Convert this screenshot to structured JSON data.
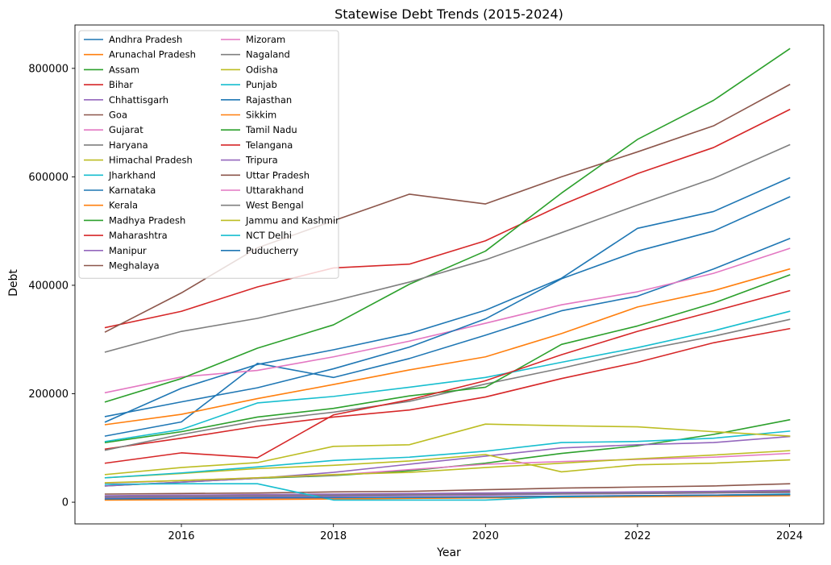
{
  "chart_data": {
    "type": "line",
    "title": "Statewise Debt Trends (2015-2024)",
    "xlabel": "Year",
    "ylabel": "Debt",
    "x": [
      2015,
      2016,
      2017,
      2018,
      2019,
      2020,
      2021,
      2022,
      2023,
      2024
    ],
    "xlim": [
      2014.6,
      2024.45
    ],
    "ylim": [
      -40000,
      880000
    ],
    "xticks": [
      2016,
      2018,
      2020,
      2022,
      2024
    ],
    "yticks": [
      0,
      200000,
      400000,
      600000,
      800000
    ],
    "grid": false,
    "legend_position": "top-left",
    "legend_columns": 2,
    "series": [
      {
        "name": "Andhra Pradesh",
        "color": "#1f77b4",
        "values": [
          122000,
          148000,
          256000,
          230000,
          265000,
          308000,
          353000,
          380000,
          430000,
          486000
        ]
      },
      {
        "name": "Arunachal Pradesh",
        "color": "#ff7f0e",
        "values": [
          5000,
          6000,
          6500,
          7000,
          7500,
          8000,
          10000,
          12000,
          13000,
          14000
        ]
      },
      {
        "name": "Assam",
        "color": "#2ca02c",
        "values": [
          30000,
          37000,
          44000,
          49000,
          58000,
          72000,
          90000,
          104000,
          125000,
          152000
        ]
      },
      {
        "name": "Bihar",
        "color": "#d62728",
        "values": [
          98000,
          118000,
          140000,
          157000,
          170000,
          194000,
          228000,
          258000,
          294000,
          320000
        ]
      },
      {
        "name": "Chhattisgarh",
        "color": "#9467bd",
        "values": [
          30000,
          37000,
          44000,
          55000,
          70000,
          85000,
          100000,
          106000,
          110000,
          121000
        ]
      },
      {
        "name": "Goa",
        "color": "#8c564b",
        "values": [
          15000,
          16000,
          17000,
          19000,
          20000,
          23000,
          26000,
          28000,
          30000,
          34000
        ]
      },
      {
        "name": "Gujarat",
        "color": "#e377c2",
        "values": [
          202000,
          231000,
          243000,
          268000,
          297000,
          330000,
          364000,
          388000,
          422000,
          468000
        ]
      },
      {
        "name": "Haryana",
        "color": "#7f7f7f",
        "values": [
          96000,
          125000,
          150000,
          166000,
          186000,
          218000,
          247000,
          279000,
          306000,
          337000
        ]
      },
      {
        "name": "Himachal Pradesh",
        "color": "#bcbd22",
        "values": [
          45000,
          53000,
          62000,
          68000,
          76000,
          88000,
          56000,
          69000,
          72000,
          78000
        ]
      },
      {
        "name": "Jharkhand",
        "color": "#17becf",
        "values": [
          45000,
          54000,
          65000,
          77000,
          83000,
          94000,
          110000,
          112000,
          118000,
          131000
        ]
      },
      {
        "name": "Karnataka",
        "color": "#1f77b4",
        "values": [
          158000,
          185000,
          211000,
          246000,
          286000,
          338000,
          412000,
          463000,
          500000,
          563000
        ]
      },
      {
        "name": "Kerala",
        "color": "#ff7f0e",
        "values": [
          143000,
          162000,
          191000,
          217000,
          244000,
          268000,
          311000,
          360000,
          390000,
          430000
        ]
      },
      {
        "name": "Madhya Pradesh",
        "color": "#2ca02c",
        "values": [
          110000,
          130000,
          157000,
          173000,
          196000,
          212000,
          291000,
          325000,
          367000,
          419000
        ]
      },
      {
        "name": "Maharashtra",
        "color": "#d62728",
        "values": [
          322000,
          352000,
          397000,
          432000,
          439000,
          482000,
          548000,
          606000,
          654000,
          724000
        ]
      },
      {
        "name": "Manipur",
        "color": "#9467bd",
        "values": [
          8000,
          9000,
          10000,
          11000,
          12000,
          13000,
          15000,
          16000,
          17000,
          18000
        ]
      },
      {
        "name": "Meghalaya",
        "color": "#8c564b",
        "values": [
          10000,
          11000,
          12000,
          13000,
          14000,
          15000,
          16000,
          17000,
          18000,
          19000
        ]
      },
      {
        "name": "Mizoram",
        "color": "#e377c2",
        "values": [
          6000,
          6500,
          7000,
          8000,
          9000,
          10000,
          11000,
          12000,
          13000,
          14000
        ]
      },
      {
        "name": "Nagaland",
        "color": "#7f7f7f",
        "values": [
          10000,
          11000,
          12000,
          13000,
          14000,
          15000,
          16000,
          17000,
          18000,
          20000
        ]
      },
      {
        "name": "Odisha",
        "color": "#bcbd22",
        "values": [
          51000,
          64000,
          73000,
          103000,
          106000,
          144000,
          141000,
          139000,
          130000,
          122000
        ]
      },
      {
        "name": "Punjab",
        "color": "#17becf",
        "values": [
          112000,
          134000,
          183000,
          195000,
          212000,
          230000,
          258000,
          285000,
          316000,
          352000
        ]
      },
      {
        "name": "Rajasthan",
        "color": "#1f77b4",
        "values": [
          148000,
          210000,
          254000,
          281000,
          311000,
          354000,
          413000,
          505000,
          536000,
          598000
        ]
      },
      {
        "name": "Sikkim",
        "color": "#ff7f0e",
        "values": [
          4000,
          4500,
          5000,
          6000,
          7000,
          8000,
          9000,
          10000,
          11000,
          12000
        ]
      },
      {
        "name": "Tamil Nadu",
        "color": "#2ca02c",
        "values": [
          185000,
          228000,
          284000,
          327000,
          402000,
          463000,
          570000,
          669000,
          741000,
          836000
        ]
      },
      {
        "name": "Telangana",
        "color": "#d62728",
        "values": [
          72000,
          91000,
          82000,
          161000,
          189000,
          224000,
          272000,
          315000,
          352000,
          390000
        ]
      },
      {
        "name": "Tripura",
        "color": "#9467bd",
        "values": [
          12000,
          13000,
          14000,
          15000,
          16000,
          17000,
          18000,
          19000,
          20000,
          22000
        ]
      },
      {
        "name": "Uttar Pradesh",
        "color": "#8c564b",
        "values": [
          314000,
          386000,
          469000,
          519000,
          568000,
          550000,
          600000,
          646000,
          694000,
          770000
        ]
      },
      {
        "name": "Uttarakhand",
        "color": "#e377c2",
        "values": [
          35000,
          40000,
          45000,
          50000,
          60000,
          70000,
          75000,
          79000,
          83000,
          90000
        ]
      },
      {
        "name": "West Bengal",
        "color": "#7f7f7f",
        "values": [
          277000,
          315000,
          339000,
          371000,
          406000,
          447000,
          497000,
          548000,
          597000,
          659000
        ]
      },
      {
        "name": "Jammu and Kashmir",
        "color": "#bcbd22",
        "values": [
          36000,
          40000,
          45000,
          51000,
          55000,
          64000,
          72000,
          80000,
          87000,
          95000
        ]
      },
      {
        "name": "NCT Delhi",
        "color": "#17becf",
        "values": [
          33000,
          34000,
          34000,
          4000,
          4000,
          4000,
          10000,
          12000,
          13000,
          15000
        ]
      },
      {
        "name": "Puducherry",
        "color": "#1f77b4",
        "values": [
          6000,
          7000,
          8000,
          8500,
          9000,
          9500,
          11000,
          12000,
          13000,
          14000
        ]
      }
    ]
  }
}
